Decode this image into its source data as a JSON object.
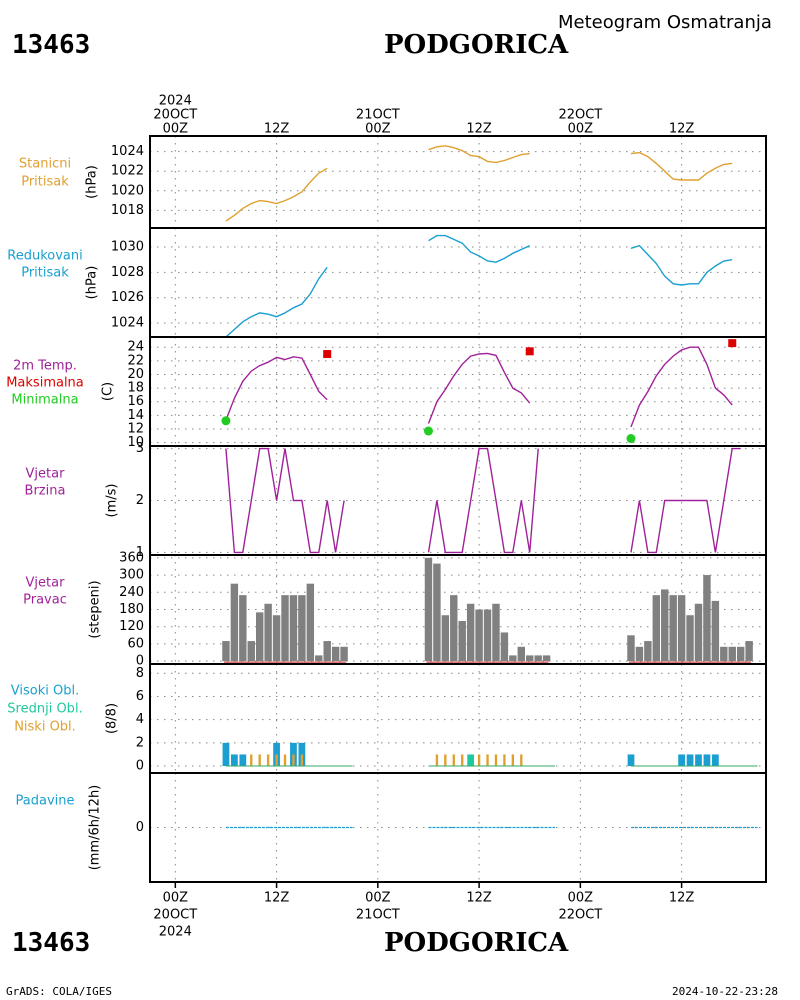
{
  "header": {
    "station_code": "13463",
    "station_name": "PODGORICA",
    "subtitle": "Meteogram Osmatranja"
  },
  "footer": {
    "station_code": "13463",
    "station_name": "PODGORICA",
    "credit": "GrADS: COLA/IGES",
    "timestamp": "2024-10-22-23:28"
  },
  "time_axis": {
    "top_labels": [
      {
        "h": 0,
        "lines": [
          "2024",
          "20OCT",
          "00Z"
        ]
      },
      {
        "h": 12,
        "lines": [
          "12Z"
        ]
      },
      {
        "h": 24,
        "lines": [
          "21OCT",
          "00Z"
        ]
      },
      {
        "h": 36,
        "lines": [
          "12Z"
        ]
      },
      {
        "h": 48,
        "lines": [
          "22OCT",
          "00Z"
        ]
      },
      {
        "h": 60,
        "lines": [
          "12Z"
        ]
      }
    ],
    "bottom_labels": [
      {
        "h": 0,
        "lines": [
          "00Z",
          "20OCT",
          "2024"
        ]
      },
      {
        "h": 12,
        "lines": [
          "12Z"
        ]
      },
      {
        "h": 24,
        "lines": [
          "00Z",
          "21OCT"
        ]
      },
      {
        "h": 36,
        "lines": [
          "12Z"
        ]
      },
      {
        "h": 48,
        "lines": [
          "00Z",
          "22OCT"
        ]
      },
      {
        "h": 60,
        "lines": [
          "12Z"
        ]
      }
    ],
    "range_hours": [
      -3,
      70
    ]
  },
  "colors": {
    "station_pressure": "#e0a030",
    "reduced_pressure": "#1a9fd0",
    "temperature": "#a0229a",
    "t_max_label": "#dd0000",
    "t_min_label": "#22cc22",
    "wind_speed": "#a020b0",
    "wind_dir": "#808080",
    "high_cloud": "#1a9fd0",
    "mid_cloud": "#20c8a0",
    "low_cloud": "#e0a030",
    "precip": "#1a9fd0",
    "grid": "#888888"
  },
  "chart_data": [
    {
      "type": "line",
      "panel": "station_pressure",
      "labels": [
        "Stanicni",
        "Pritisak"
      ],
      "ylabel": "(hPa)",
      "ylim": [
        1016.2,
        1025.6
      ],
      "yticks": [
        1018,
        1020,
        1022,
        1024
      ],
      "series": [
        {
          "x": [
            6,
            7,
            8,
            9,
            10,
            11,
            12,
            13,
            14,
            15,
            16,
            17,
            18
          ],
          "y": [
            1016.9,
            1017.5,
            1018.2,
            1018.7,
            1019.0,
            1018.9,
            1018.7,
            1019.0,
            1019.4,
            1019.9,
            1020.9,
            1021.8,
            1022.3
          ]
        },
        {
          "x": [
            30,
            31,
            32,
            33,
            34,
            35,
            36,
            37,
            38,
            39,
            40,
            41,
            42
          ],
          "y": [
            1024.2,
            1024.5,
            1024.6,
            1024.4,
            1024.1,
            1023.6,
            1023.5,
            1023.0,
            1022.9,
            1023.1,
            1023.4,
            1023.7,
            1023.8
          ]
        },
        {
          "x": [
            54,
            55,
            56,
            57,
            58,
            59,
            60,
            61,
            62,
            63,
            64,
            65,
            66
          ],
          "y": [
            1023.8,
            1023.9,
            1023.5,
            1022.8,
            1022.0,
            1021.2,
            1021.1,
            1021.1,
            1021.1,
            1021.8,
            1022.3,
            1022.7,
            1022.8
          ]
        }
      ]
    },
    {
      "type": "line",
      "panel": "reduced_pressure",
      "labels": [
        "Redukovani",
        "Pritisak"
      ],
      "ylabel": "(hPa)",
      "ylim": [
        1022.9,
        1031.5
      ],
      "yticks": [
        1024,
        1026,
        1028,
        1030
      ],
      "series": [
        {
          "x": [
            6,
            7,
            8,
            9,
            10,
            11,
            12,
            13,
            14,
            15,
            16,
            17,
            18
          ],
          "y": [
            1022.9,
            1023.5,
            1024.1,
            1024.5,
            1024.8,
            1024.7,
            1024.5,
            1024.8,
            1025.2,
            1025.5,
            1026.3,
            1027.5,
            1028.4
          ]
        },
        {
          "x": [
            30,
            31,
            32,
            33,
            34,
            35,
            36,
            37,
            38,
            39,
            40,
            41,
            42
          ],
          "y": [
            1030.5,
            1030.9,
            1030.9,
            1030.6,
            1030.3,
            1029.6,
            1029.3,
            1028.9,
            1028.8,
            1029.1,
            1029.5,
            1029.8,
            1030.1
          ]
        },
        {
          "x": [
            54,
            55,
            56,
            57,
            58,
            59,
            60,
            61,
            62,
            63,
            64,
            65,
            66
          ],
          "y": [
            1029.9,
            1030.1,
            1029.4,
            1028.7,
            1027.7,
            1027.1,
            1027.0,
            1027.1,
            1027.1,
            1028.0,
            1028.5,
            1028.9,
            1029.0
          ]
        }
      ]
    },
    {
      "type": "line",
      "panel": "temperature",
      "labels": [
        "2m Temp.",
        "Maksimalna",
        "Minimalna"
      ],
      "ylabel": "(C)",
      "ylim": [
        9.5,
        25.5
      ],
      "yticks": [
        10,
        12,
        14,
        16,
        18,
        20,
        22,
        24
      ],
      "series": [
        {
          "x": [
            6,
            7,
            8,
            9,
            10,
            11,
            12,
            13,
            14,
            15,
            16,
            17,
            18
          ],
          "y": [
            13.3,
            16.5,
            19.0,
            20.5,
            21.3,
            21.8,
            22.5,
            22.2,
            22.6,
            22.4,
            20.0,
            17.5,
            16.3
          ]
        },
        {
          "x": [
            30,
            31,
            32,
            33,
            34,
            35,
            36,
            37,
            38,
            39,
            40,
            41,
            42
          ],
          "y": [
            12.8,
            16.0,
            17.8,
            19.8,
            21.5,
            22.7,
            23.0,
            23.1,
            22.8,
            20.3,
            18.0,
            17.3,
            15.8
          ]
        },
        {
          "x": [
            54,
            55,
            56,
            57,
            58,
            59,
            60,
            61,
            62,
            63,
            64,
            65,
            66
          ],
          "y": [
            12.3,
            15.5,
            17.5,
            19.8,
            21.5,
            22.7,
            23.6,
            24.0,
            24.0,
            21.5,
            18.0,
            17.0,
            15.5
          ]
        }
      ],
      "tmax": [
        {
          "x": 18,
          "y": 23.0
        },
        {
          "x": 42,
          "y": 23.4
        },
        {
          "x": 66,
          "y": 24.6
        }
      ],
      "tmin": [
        {
          "x": 6,
          "y": 13.2
        },
        {
          "x": 30,
          "y": 11.7
        },
        {
          "x": 54,
          "y": 10.6
        }
      ]
    },
    {
      "type": "line",
      "panel": "wind_speed",
      "labels": [
        "Vjetar",
        "Brzina"
      ],
      "ylabel": "(m/s)",
      "ylim": [
        0.95,
        3.05
      ],
      "yticks": [
        1,
        2,
        3
      ],
      "series": [
        {
          "x": [
            6,
            7,
            8,
            9,
            10,
            11,
            12,
            13,
            14,
            15,
            16,
            17,
            18,
            19,
            20
          ],
          "y": [
            3,
            1,
            1,
            2,
            3,
            3,
            2,
            3,
            2,
            2,
            1,
            1,
            2,
            1,
            2
          ]
        },
        {
          "x": [
            30,
            31,
            32,
            33,
            34,
            35,
            36,
            37,
            38,
            39,
            40,
            41,
            42,
            43
          ],
          "y": [
            1,
            2,
            1,
            1,
            1,
            2,
            3,
            3,
            2,
            1,
            1,
            2,
            1,
            3
          ]
        },
        {
          "x": [
            54,
            55,
            56,
            57,
            58,
            59,
            60,
            61,
            62,
            63,
            64,
            65,
            66,
            67
          ],
          "y": [
            1,
            2,
            1,
            1,
            2,
            2,
            2,
            2,
            2,
            2,
            1,
            2,
            3,
            3
          ]
        }
      ]
    },
    {
      "type": "bar",
      "panel": "wind_direction",
      "labels": [
        "Vjetar",
        "Pravac"
      ],
      "ylabel": "(stepeni)",
      "ylim": [
        -10,
        370
      ],
      "yticks": [
        0,
        60,
        120,
        180,
        240,
        300,
        360
      ],
      "x": [
        6,
        7,
        8,
        9,
        10,
        11,
        12,
        13,
        14,
        15,
        16,
        17,
        18,
        19,
        20,
        30,
        31,
        32,
        33,
        34,
        35,
        36,
        37,
        38,
        39,
        40,
        41,
        42,
        43,
        44,
        54,
        55,
        56,
        57,
        58,
        59,
        60,
        61,
        62,
        63,
        64,
        65,
        66,
        67,
        68
      ],
      "values": [
        70,
        270,
        230,
        70,
        170,
        200,
        160,
        230,
        230,
        230,
        270,
        20,
        70,
        50,
        50,
        360,
        340,
        160,
        230,
        140,
        200,
        180,
        180,
        200,
        100,
        20,
        50,
        20,
        20,
        20,
        90,
        50,
        70,
        230,
        250,
        230,
        230,
        160,
        200,
        300,
        210,
        50,
        50,
        50,
        70
      ]
    },
    {
      "type": "bar",
      "panel": "clouds",
      "labels": [
        "Visoki Obl.",
        "Srednji Obl.",
        "Niski Obl."
      ],
      "ylabel": "(8/8)",
      "ylim": [
        -0.6,
        8.8
      ],
      "yticks": [
        0,
        2,
        4,
        6,
        8
      ],
      "high": [
        {
          "x": 6,
          "v": 2
        },
        {
          "x": 7,
          "v": 1
        },
        {
          "x": 8,
          "v": 1
        },
        {
          "x": 12,
          "v": 2
        },
        {
          "x": 14,
          "v": 2
        },
        {
          "x": 15,
          "v": 2
        },
        {
          "x": 54,
          "v": 1
        },
        {
          "x": 60,
          "v": 1
        },
        {
          "x": 61,
          "v": 1
        },
        {
          "x": 62,
          "v": 1
        },
        {
          "x": 63,
          "v": 1
        },
        {
          "x": 64,
          "v": 1
        }
      ],
      "mid": [
        {
          "x": 35,
          "v": 1
        }
      ],
      "low": [
        {
          "x": 9,
          "v": 1
        },
        {
          "x": 10,
          "v": 1
        },
        {
          "x": 11,
          "v": 1
        },
        {
          "x": 12,
          "v": 1
        },
        {
          "x": 13,
          "v": 1
        },
        {
          "x": 14,
          "v": 1
        },
        {
          "x": 15,
          "v": 1
        },
        {
          "x": 31,
          "v": 1
        },
        {
          "x": 32,
          "v": 1
        },
        {
          "x": 33,
          "v": 1
        },
        {
          "x": 34,
          "v": 1
        },
        {
          "x": 36,
          "v": 1
        },
        {
          "x": 37,
          "v": 1
        },
        {
          "x": 38,
          "v": 1
        },
        {
          "x": 39,
          "v": 1
        },
        {
          "x": 40,
          "v": 1
        },
        {
          "x": 41,
          "v": 1
        }
      ]
    },
    {
      "type": "line",
      "panel": "precipitation",
      "labels": [
        "Padavine"
      ],
      "ylabel": "(mm/6h/12h)",
      "ylim": [
        -1,
        1
      ],
      "yticks": [
        0
      ],
      "series": [
        {
          "x": [
            6,
            21
          ],
          "y": [
            0,
            0
          ]
        },
        {
          "x": [
            30,
            45
          ],
          "y": [
            0,
            0
          ]
        },
        {
          "x": [
            54,
            69
          ],
          "y": [
            0,
            0
          ]
        }
      ]
    }
  ]
}
